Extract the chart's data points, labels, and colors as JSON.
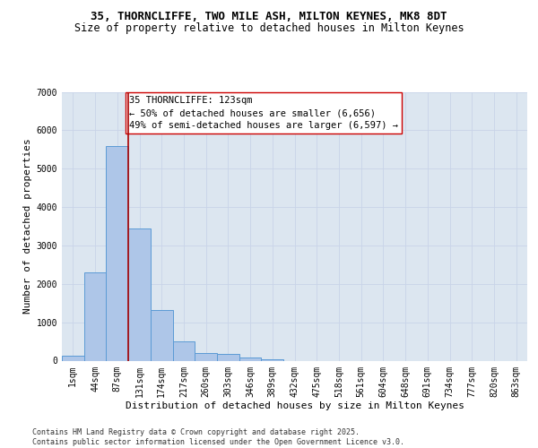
{
  "title_line1": "35, THORNCLIFFE, TWO MILE ASH, MILTON KEYNES, MK8 8DT",
  "title_line2": "Size of property relative to detached houses in Milton Keynes",
  "xlabel": "Distribution of detached houses by size in Milton Keynes",
  "ylabel": "Number of detached properties",
  "categories": [
    "1sqm",
    "44sqm",
    "87sqm",
    "131sqm",
    "174sqm",
    "217sqm",
    "260sqm",
    "303sqm",
    "346sqm",
    "389sqm",
    "432sqm",
    "475sqm",
    "518sqm",
    "561sqm",
    "604sqm",
    "648sqm",
    "691sqm",
    "734sqm",
    "777sqm",
    "820sqm",
    "863sqm"
  ],
  "values": [
    130,
    2300,
    5600,
    3450,
    1310,
    510,
    200,
    175,
    85,
    30,
    0,
    0,
    0,
    0,
    0,
    0,
    0,
    0,
    0,
    0,
    0
  ],
  "bar_color": "#aec6e8",
  "bar_edge_color": "#5b9bd5",
  "bar_linewidth": 0.7,
  "vline_x": 2.5,
  "vline_color": "#aa0000",
  "annotation_title": "35 THORNCLIFFE: 123sqm",
  "annotation_line2": "← 50% of detached houses are smaller (6,656)",
  "annotation_line3": "49% of semi-detached houses are larger (6,597) →",
  "ylim": [
    0,
    7000
  ],
  "yticks": [
    0,
    1000,
    2000,
    3000,
    4000,
    5000,
    6000,
    7000
  ],
  "grid_color": "#c8d4e8",
  "bg_color": "#dce6f0",
  "footer_line1": "Contains HM Land Registry data © Crown copyright and database right 2025.",
  "footer_line2": "Contains public sector information licensed under the Open Government Licence v3.0.",
  "title_fontsize": 9,
  "subtitle_fontsize": 8.5,
  "axis_label_fontsize": 8,
  "tick_fontsize": 7,
  "annotation_fontsize": 7.5,
  "footer_fontsize": 6
}
